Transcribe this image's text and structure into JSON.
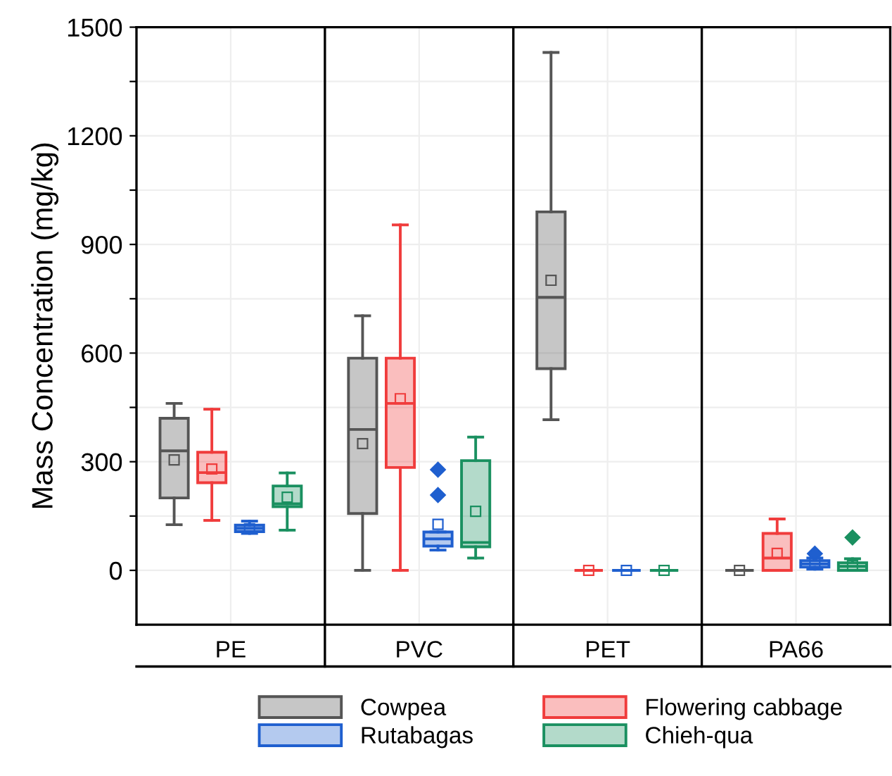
{
  "chart_data": {
    "type": "box",
    "ylabel": "Mass Concentration (mg/kg)",
    "categories": [
      "PE",
      "PVC",
      "PET",
      "PA66"
    ],
    "ylim": [
      -150,
      1500
    ],
    "yticks": [
      0,
      {
        "value": 150,
        "label": null
      },
      300,
      {
        "value": 450,
        "label": null
      },
      600,
      {
        "value": 750,
        "label": null
      },
      900,
      {
        "value": 1050,
        "label": null
      },
      1200,
      {
        "value": 1350,
        "label": null
      },
      1500
    ],
    "grid": true,
    "legend": "bottom",
    "series": [
      {
        "name": "Cowpea",
        "color": "#555555",
        "boxes": [
          {
            "low": 126,
            "q1": 200,
            "median": 330,
            "q3": 420,
            "high": 461,
            "mean": 305
          },
          {
            "low": 0,
            "q1": 157,
            "median": 389,
            "q3": 586,
            "high": 703,
            "mean": 350
          },
          {
            "low": 416,
            "q1": 557,
            "median": 754,
            "q3": 990,
            "high": 1430,
            "mean": 801
          },
          {
            "low": 0,
            "q1": 0,
            "median": 0,
            "q3": 0,
            "high": 0,
            "mean": 0
          }
        ]
      },
      {
        "name": "Flowering cabbage",
        "color": "#f03c3c",
        "boxes": [
          {
            "low": 138,
            "q1": 242,
            "median": 270,
            "q3": 326,
            "high": 445,
            "mean": 280
          },
          {
            "low": 0,
            "q1": 284,
            "median": 461,
            "q3": 586,
            "high": 954,
            "mean": 474
          },
          {
            "low": 0,
            "q1": 0,
            "median": 0,
            "q3": 0,
            "high": 0,
            "mean": 0
          },
          {
            "low": 0,
            "q1": 0,
            "median": 34,
            "q3": 102,
            "high": 142,
            "mean": 47
          }
        ]
      },
      {
        "name": "Rutabagas",
        "color": "#1f5fcf",
        "boxes": [
          {
            "low": 102,
            "q1": 107,
            "median": 116,
            "q3": 125,
            "high": 136,
            "mean": 115
          },
          {
            "low": 56,
            "q1": 67,
            "median": 87,
            "q3": 106,
            "high": 106,
            "mean": 127,
            "outliers": [
              208,
              278
            ]
          },
          {
            "low": 0,
            "q1": 0,
            "median": 0,
            "q3": 0,
            "high": 0,
            "mean": 0
          },
          {
            "low": 3,
            "q1": 9,
            "median": 18,
            "q3": 27,
            "high": 34,
            "mean": 20,
            "outliers": [
              46
            ]
          }
        ]
      },
      {
        "name": "Chieh-qua",
        "color": "#1a9060",
        "boxes": [
          {
            "low": 111,
            "q1": 176,
            "median": 184,
            "q3": 233,
            "high": 269,
            "mean": 202
          },
          {
            "low": 34,
            "q1": 65,
            "median": 77,
            "q3": 303,
            "high": 368,
            "mean": 163
          },
          {
            "low": 0,
            "q1": 0,
            "median": 0,
            "q3": 0,
            "high": 0,
            "mean": 0
          },
          {
            "low": 0,
            "q1": 0,
            "median": 11,
            "q3": 21,
            "high": 32,
            "mean": 14,
            "outliers": [
              91
            ]
          }
        ]
      }
    ]
  }
}
